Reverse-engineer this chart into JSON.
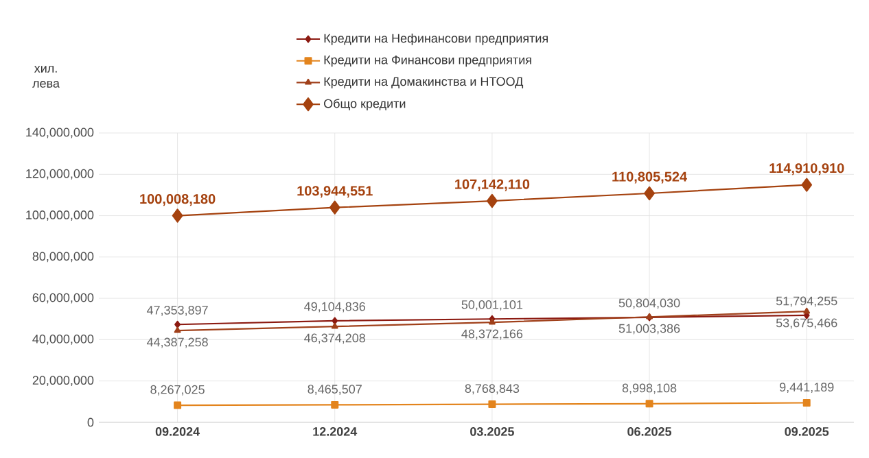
{
  "chart_data": {
    "type": "line",
    "ylabel": "хил. лева",
    "categories": [
      "09.2024",
      "12.2024",
      "03.2025",
      "06.2025",
      "09.2025"
    ],
    "series": [
      {
        "name": "Кредити на Нефинансови предприятия",
        "color": "#8c1a11",
        "marker": "diamond",
        "values": [
          47353897,
          49104836,
          50001101,
          50804030,
          51794255
        ],
        "value_labels": [
          "47,353,897",
          "49,104,836",
          "50,001,101",
          "50,804,030",
          "51,794,255"
        ]
      },
      {
        "name": "Кредити на Финансови предприятия",
        "color": "#e3841d",
        "marker": "square",
        "values": [
          8267025,
          8465507,
          8768843,
          8998108,
          9441189
        ],
        "value_labels": [
          "8,267,025",
          "8,465,507",
          "8,768,843",
          "8,998,108",
          "9,441,189"
        ]
      },
      {
        "name": "Кредити на Домакинства и НТООД",
        "color": "#a0401a",
        "marker": "triangle",
        "values": [
          44387258,
          46374208,
          48372166,
          51003386,
          53675466
        ],
        "value_labels": [
          "44,387,258",
          "46,374,208",
          "48,372,166",
          "51,003,386",
          "53,675,466"
        ]
      },
      {
        "name": "Общо кредити",
        "color": "#a5420f",
        "marker": "diamond",
        "values": [
          100008180,
          103944551,
          107142110,
          110805524,
          114910910
        ],
        "value_labels": [
          "100,008,180",
          "103,944,551",
          "107,142,110",
          "110,805,524",
          "114,910,910"
        ]
      }
    ],
    "ylim": [
      0,
      140000000
    ],
    "yticks": [
      {
        "value": 0,
        "label": "0"
      },
      {
        "value": 20000000,
        "label": "20,000,000"
      },
      {
        "value": 40000000,
        "label": "40,000,000"
      },
      {
        "value": 60000000,
        "label": "60,000,000"
      },
      {
        "value": 80000000,
        "label": "80,000,000"
      },
      {
        "value": 100000000,
        "label": "100,000,000"
      },
      {
        "value": 120000000,
        "label": "120,000,000"
      },
      {
        "value": 140000000,
        "label": "140,000,000"
      }
    ],
    "grid": true,
    "legend": "top",
    "line_style": "solid"
  }
}
